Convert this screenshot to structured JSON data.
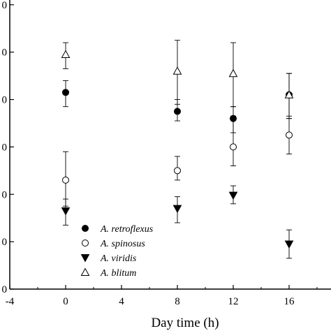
{
  "chart_data": {
    "type": "scatter",
    "xlabel": "Day time (h)",
    "ylabel": "",
    "xlim": [
      -4,
      19
    ],
    "ylim": [
      0,
      6.1
    ],
    "x_ticks": [
      -4,
      0,
      4,
      8,
      12,
      16
    ],
    "x_tick_labels": [
      "-4",
      "0",
      "4",
      "8",
      "12",
      "16"
    ],
    "y_ticks": [
      0,
      1,
      2,
      3,
      4,
      5,
      6
    ],
    "y_tick_labels": [
      "0",
      "0",
      "0",
      "0",
      "0",
      "0",
      "0"
    ],
    "grid": false,
    "legend_position": "bottom-left",
    "series": [
      {
        "name": "A. retroflexus",
        "marker": "filled-circle",
        "points": [
          {
            "x": 0,
            "y": 4.15,
            "err_low": 0.3,
            "err_high": 0.25
          },
          {
            "x": 8,
            "y": 3.75,
            "err_low": 0.2,
            "err_high": 0.25
          },
          {
            "x": 12,
            "y": 3.6,
            "err_low": 0.3,
            "err_high": 0.25
          },
          {
            "x": 16,
            "y": 4.1,
            "err_low": 0.5,
            "err_high": 0.45
          }
        ]
      },
      {
        "name": "A. spinosus",
        "marker": "open-circle",
        "points": [
          {
            "x": 0,
            "y": 2.3,
            "err_low": 0.55,
            "err_high": 0.6
          },
          {
            "x": 8,
            "y": 2.5,
            "err_low": 0.2,
            "err_high": 0.3
          },
          {
            "x": 12,
            "y": 3.0,
            "err_low": 0.4,
            "err_high": 0.65
          },
          {
            "x": 16,
            "y": 3.25,
            "err_low": 0.4,
            "err_high": 0.4
          }
        ]
      },
      {
        "name": "A. viridis",
        "marker": "filled-triangle-down",
        "points": [
          {
            "x": 0,
            "y": 1.65,
            "err_low": 0.3,
            "err_high": 0.25
          },
          {
            "x": 8,
            "y": 1.7,
            "err_low": 0.3,
            "err_high": 0.25
          },
          {
            "x": 12,
            "y": 1.98,
            "err_low": 0.18,
            "err_high": 0.2
          },
          {
            "x": 16,
            "y": 0.95,
            "err_low": 0.3,
            "err_high": 0.3
          }
        ]
      },
      {
        "name": "A. blitum",
        "marker": "open-triangle-up",
        "points": [
          {
            "x": 0,
            "y": 4.95,
            "err_low": 0.3,
            "err_high": 0.25
          },
          {
            "x": 8,
            "y": 4.6,
            "err_low": 0.7,
            "err_high": 0.65
          },
          {
            "x": 12,
            "y": 4.55,
            "err_low": 0.7,
            "err_high": 0.65
          },
          {
            "x": 16,
            "y": 4.1,
            "err_low": 0.5,
            "err_high": 0.45
          }
        ]
      }
    ]
  }
}
